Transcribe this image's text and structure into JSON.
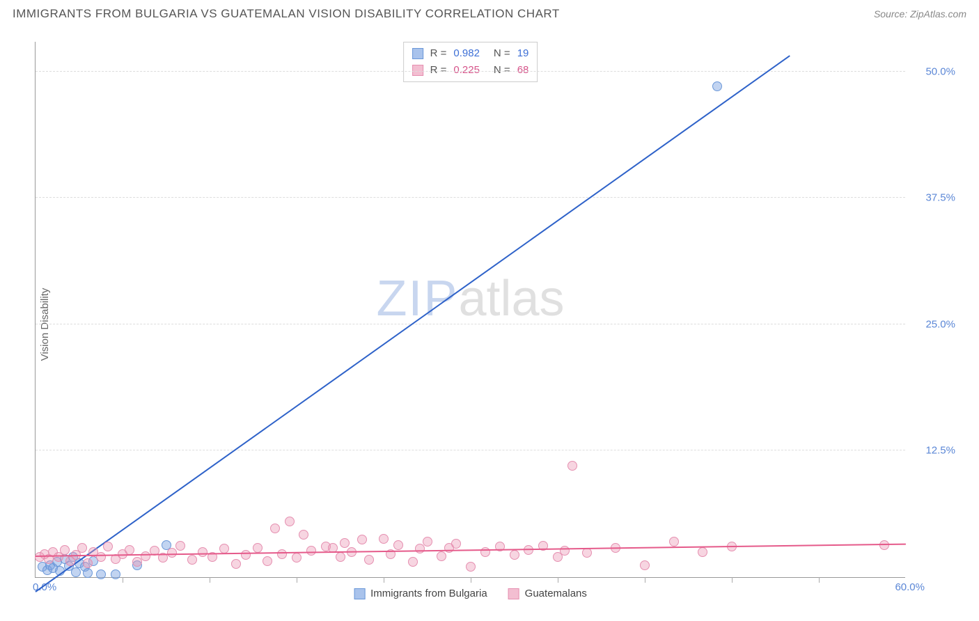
{
  "header": {
    "title": "IMMIGRANTS FROM BULGARIA VS GUATEMALAN VISION DISABILITY CORRELATION CHART",
    "source_prefix": "Source: ",
    "source_name": "ZipAtlas.com"
  },
  "chart": {
    "type": "scatter",
    "ylabel": "Vision Disability",
    "xlim": [
      0,
      60
    ],
    "ylim": [
      0,
      53
    ],
    "xtick_count": 10,
    "ytick_labels": [
      "12.5%",
      "25.0%",
      "37.5%",
      "50.0%"
    ],
    "ytick_values": [
      12.5,
      25.0,
      37.5,
      50.0
    ],
    "x0_label": "0.0%",
    "x1_label": "60.0%",
    "background_color": "#ffffff",
    "grid_color": "#dddddd",
    "axis_color": "#999999",
    "series": [
      {
        "name": "Immigrants from Bulgaria",
        "color_fill": "rgba(120,160,225,0.45)",
        "color_stroke": "#6a97d8",
        "swatch_fill": "#a9c3ec",
        "swatch_border": "#6a97d8",
        "r_value": "0.982",
        "n_value": "19",
        "trend": {
          "x1": 0,
          "y1": -1.5,
          "x2": 52,
          "y2": 51.5,
          "color": "#2e62c9"
        },
        "points": [
          [
            0.5,
            1.0
          ],
          [
            0.8,
            0.7
          ],
          [
            1.0,
            1.2
          ],
          [
            1.2,
            0.9
          ],
          [
            1.5,
            1.5
          ],
          [
            1.7,
            0.6
          ],
          [
            2.0,
            1.8
          ],
          [
            2.3,
            1.1
          ],
          [
            2.6,
            2.0
          ],
          [
            2.8,
            0.5
          ],
          [
            3.0,
            1.4
          ],
          [
            3.4,
            1.0
          ],
          [
            3.6,
            0.4
          ],
          [
            4.0,
            1.6
          ],
          [
            4.5,
            0.3
          ],
          [
            5.5,
            0.3
          ],
          [
            7.0,
            1.2
          ],
          [
            9.0,
            3.2
          ],
          [
            47.0,
            48.5
          ]
        ]
      },
      {
        "name": "Guatemalans",
        "color_fill": "rgba(235,150,180,0.40)",
        "color_stroke": "#e58fb0",
        "swatch_fill": "#f3bed1",
        "swatch_border": "#e58fb0",
        "r_value": "0.225",
        "n_value": "68",
        "trend": {
          "x1": 0,
          "y1": 2.0,
          "x2": 60,
          "y2": 3.2,
          "color": "#e55a8a"
        },
        "points": [
          [
            0.3,
            2.0
          ],
          [
            0.6,
            2.3
          ],
          [
            0.9,
            1.8
          ],
          [
            1.2,
            2.5
          ],
          [
            1.6,
            2.0
          ],
          [
            2.0,
            2.7
          ],
          [
            2.4,
            1.6
          ],
          [
            2.8,
            2.2
          ],
          [
            3.2,
            2.9
          ],
          [
            3.6,
            1.4
          ],
          [
            4.0,
            2.5
          ],
          [
            4.5,
            2.0
          ],
          [
            5.0,
            3.0
          ],
          [
            5.5,
            1.8
          ],
          [
            6.0,
            2.3
          ],
          [
            6.5,
            2.7
          ],
          [
            7.0,
            1.5
          ],
          [
            7.6,
            2.1
          ],
          [
            8.2,
            2.6
          ],
          [
            8.8,
            1.9
          ],
          [
            9.4,
            2.4
          ],
          [
            10.0,
            3.1
          ],
          [
            10.8,
            1.7
          ],
          [
            11.5,
            2.5
          ],
          [
            12.2,
            2.0
          ],
          [
            13.0,
            2.8
          ],
          [
            13.8,
            1.3
          ],
          [
            14.5,
            2.2
          ],
          [
            15.3,
            2.9
          ],
          [
            16.0,
            1.6
          ],
          [
            16.5,
            4.8
          ],
          [
            17.0,
            2.3
          ],
          [
            17.5,
            5.5
          ],
          [
            18.0,
            1.9
          ],
          [
            18.5,
            4.2
          ],
          [
            19.0,
            2.6
          ],
          [
            20.0,
            3.0
          ],
          [
            20.5,
            2.9
          ],
          [
            21.0,
            2.0
          ],
          [
            21.3,
            3.4
          ],
          [
            21.8,
            2.5
          ],
          [
            22.5,
            3.7
          ],
          [
            23.0,
            1.7
          ],
          [
            24.0,
            3.8
          ],
          [
            24.5,
            2.3
          ],
          [
            25.0,
            3.2
          ],
          [
            26.0,
            1.5
          ],
          [
            26.5,
            2.8
          ],
          [
            27.0,
            3.5
          ],
          [
            28.0,
            2.1
          ],
          [
            28.5,
            2.9
          ],
          [
            29.0,
            3.3
          ],
          [
            30.0,
            1.0
          ],
          [
            31.0,
            2.5
          ],
          [
            32.0,
            3.0
          ],
          [
            33.0,
            2.2
          ],
          [
            34.0,
            2.7
          ],
          [
            35.0,
            3.1
          ],
          [
            36.0,
            2.0
          ],
          [
            36.5,
            2.6
          ],
          [
            37.0,
            11.0
          ],
          [
            38.0,
            2.4
          ],
          [
            40.0,
            2.9
          ],
          [
            42.0,
            1.2
          ],
          [
            44.0,
            3.5
          ],
          [
            46.0,
            2.5
          ],
          [
            48.0,
            3.0
          ],
          [
            58.5,
            3.2
          ]
        ]
      }
    ],
    "watermark": {
      "zip": "ZIP",
      "atlas": "atlas"
    },
    "legend_top_labels": {
      "r": "R =",
      "n": "N ="
    }
  }
}
